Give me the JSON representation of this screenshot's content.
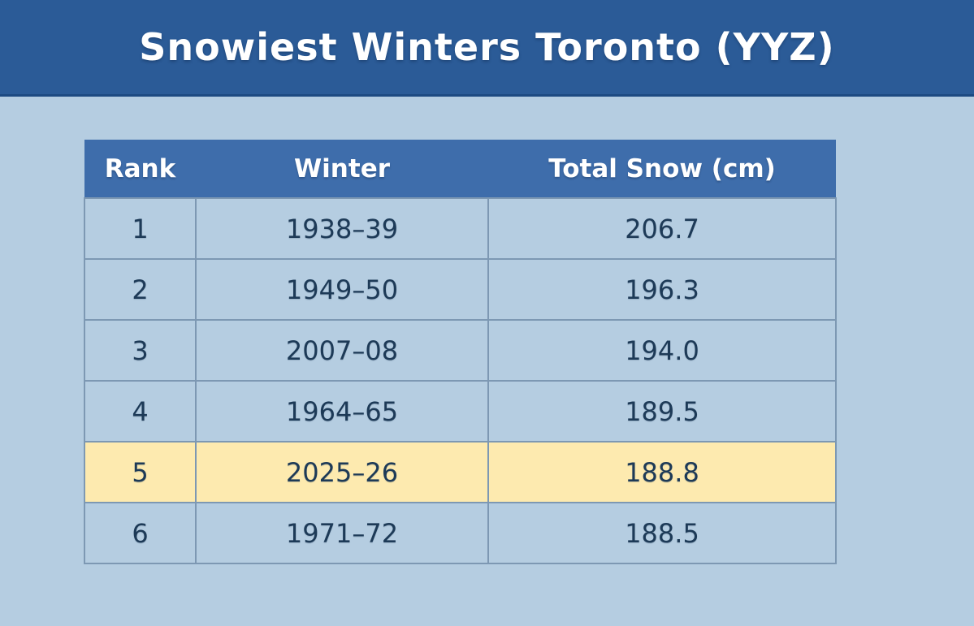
{
  "title": "Snowiest Winters Toronto (YYZ)",
  "colors": {
    "page_bg": "#b5cde1",
    "banner_bg": "#2b5b97",
    "banner_border": "#1d4a82",
    "banner_text": "#ffffff",
    "header_bg": "#3e6dab",
    "header_text": "#ffffff",
    "cell_text": "#1d3a57",
    "border": "#7d98b3",
    "highlight_bg": "#fdeaaf"
  },
  "table": {
    "columns": [
      "Rank",
      "Winter",
      "Total Snow (cm)"
    ],
    "rows": [
      {
        "rank": "1",
        "winter": "1938–39",
        "total_snow_cm": "206.7",
        "highlight": false
      },
      {
        "rank": "2",
        "winter": "1949–50",
        "total_snow_cm": "196.3",
        "highlight": false
      },
      {
        "rank": "3",
        "winter": "2007–08",
        "total_snow_cm": "194.0",
        "highlight": false
      },
      {
        "rank": "4",
        "winter": "1964–65",
        "total_snow_cm": "189.5",
        "highlight": false
      },
      {
        "rank": "5",
        "winter": "2025–26",
        "total_snow_cm": "188.8",
        "highlight": true
      },
      {
        "rank": "6",
        "winter": "1971–72",
        "total_snow_cm": "188.5",
        "highlight": false
      }
    ]
  },
  "chart_data": {
    "type": "table",
    "title": "Snowiest Winters Toronto (YYZ)",
    "columns": [
      "Rank",
      "Winter",
      "Total Snow (cm)"
    ],
    "rows": [
      [
        1,
        "1938–39",
        206.7
      ],
      [
        2,
        "1949–50",
        196.3
      ],
      [
        3,
        "2007–08",
        194.0
      ],
      [
        4,
        "1964–65",
        189.5
      ],
      [
        5,
        "2025–26",
        188.8
      ],
      [
        6,
        "1971–72",
        188.5
      ]
    ],
    "highlighted_row_index": 4,
    "notes": "Row for winter 2025–26 is highlighted in pale yellow"
  }
}
